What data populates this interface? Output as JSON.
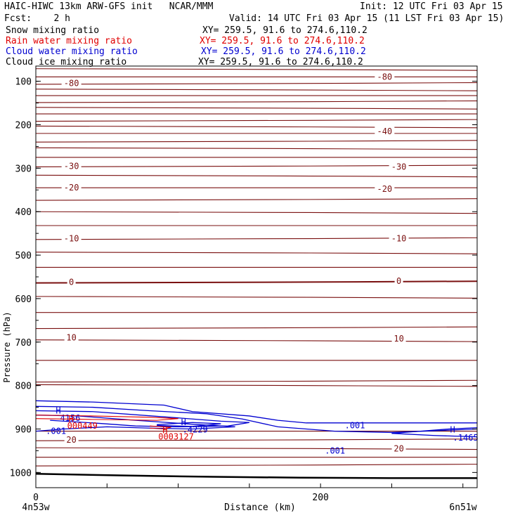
{
  "header": {
    "title": "HAIC-HIWC 13km ARW-GFS init   NCAR/MMM",
    "init": "Init: 12 UTC Fri 03 Apr 15",
    "fcst": "Fcst:    2 h",
    "valid": "Valid: 14 UTC Fri 03 Apr 15 (11 LST Fri 03 Apr 15)"
  },
  "fields": [
    {
      "name": "Snow mixing ratio",
      "xy": "XY= 259.5, 91.6 to 274.6,110.2",
      "color": "#000000"
    },
    {
      "name": "Rain water mixing ratio",
      "xy": "XY= 259.5, 91.6 to 274.6,110.2",
      "color": "#e00000"
    },
    {
      "name": "Cloud water mixing ratio",
      "xy": "XY= 259.5, 91.6 to 274.6,110.2",
      "color": "#0000d0"
    },
    {
      "name": "Cloud ice mixing ratio",
      "xy": "XY= 259.5, 91.6 to 274.6,110.2",
      "color": "#000000"
    }
  ],
  "chart_data": {
    "type": "line",
    "xlabel": "Distance (km)",
    "ylabel": "Pressure (hPa)",
    "xlim": [
      0,
      310
    ],
    "ylim": [
      1035,
      65
    ],
    "x_ticks": [
      0,
      200
    ],
    "y_ticks": [
      100,
      200,
      300,
      400,
      500,
      600,
      700,
      800,
      900,
      1000
    ],
    "x_endpoints": {
      "left": "4n53w",
      "right": "6n51w"
    },
    "temperature_contours": {
      "color": "#7a1010",
      "isotherm_pressures": [
        73,
        90,
        105,
        120,
        133,
        147,
        162,
        175,
        190,
        205,
        220,
        238,
        255,
        275,
        295,
        318,
        345,
        372,
        402,
        432,
        462,
        495,
        528,
        562,
        597,
        632,
        667,
        697,
        742,
        790,
        800,
        905,
        925,
        945,
        965,
        983
      ],
      "labels": [
        {
          "text": "-80",
          "x": 25,
          "p": 105
        },
        {
          "text": "-80",
          "x": 245,
          "p": 90
        },
        {
          "text": "-40",
          "x": 245,
          "p": 215
        },
        {
          "text": "-30",
          "x": 25,
          "p": 295
        },
        {
          "text": "-30",
          "x": 255,
          "p": 297
        },
        {
          "text": "-20",
          "x": 25,
          "p": 345
        },
        {
          "text": "-20",
          "x": 245,
          "p": 348
        },
        {
          "text": "-10",
          "x": 25,
          "p": 462
        },
        {
          "text": "-10",
          "x": 255,
          "p": 462
        },
        {
          "text": "0",
          "x": 25,
          "p": 562
        },
        {
          "text": "0",
          "x": 255,
          "p": 560
        },
        {
          "text": "10",
          "x": 25,
          "p": 690
        },
        {
          "text": "10",
          "x": 255,
          "p": 692
        },
        {
          "text": "20",
          "x": 25,
          "p": 925
        },
        {
          "text": "20",
          "x": 255,
          "p": 945
        }
      ]
    },
    "cloud_water": {
      "color": "#0000d0",
      "contour_value": ".001",
      "annotations": [
        {
          "text": "H",
          "x": 14,
          "p": 858,
          "color": "#0000d0"
        },
        {
          "text": "4156",
          "x": 17,
          "p": 875,
          "color": "#0000d0"
        },
        {
          "text": ".001",
          "x": 7,
          "p": 905,
          "color": "#0000d0"
        },
        {
          "text": "H",
          "x": 102,
          "p": 885,
          "color": "#0000d0"
        },
        {
          "text": ".4229",
          "x": 103,
          "p": 902,
          "color": "#0000d0"
        },
        {
          "text": ".001",
          "x": 217,
          "p": 892,
          "color": "#0000d0"
        },
        {
          "text": ".001",
          "x": 203,
          "p": 950,
          "color": "#0000d0"
        },
        {
          "text": "H",
          "x": 291,
          "p": 902,
          "color": "#0000d0"
        },
        {
          "text": ".1465",
          "x": 293,
          "p": 920,
          "color": "#0000d0"
        }
      ]
    },
    "rain_water": {
      "color": "#e00000",
      "annotations": [
        {
          "text": "H",
          "x": 23,
          "p": 877,
          "color": "#e00000"
        },
        {
          "text": "000449",
          "x": 22,
          "p": 893,
          "color": "#e00000"
        },
        {
          "text": "H",
          "x": 89,
          "p": 903,
          "color": "#e00000"
        },
        {
          "text": "0003127",
          "x": 86,
          "p": 918,
          "color": "#e00000"
        }
      ]
    },
    "terrain": {
      "color": "#000000",
      "surface_pressure": [
        1003,
        1007,
        1010,
        1012,
        1013,
        1013
      ]
    }
  }
}
